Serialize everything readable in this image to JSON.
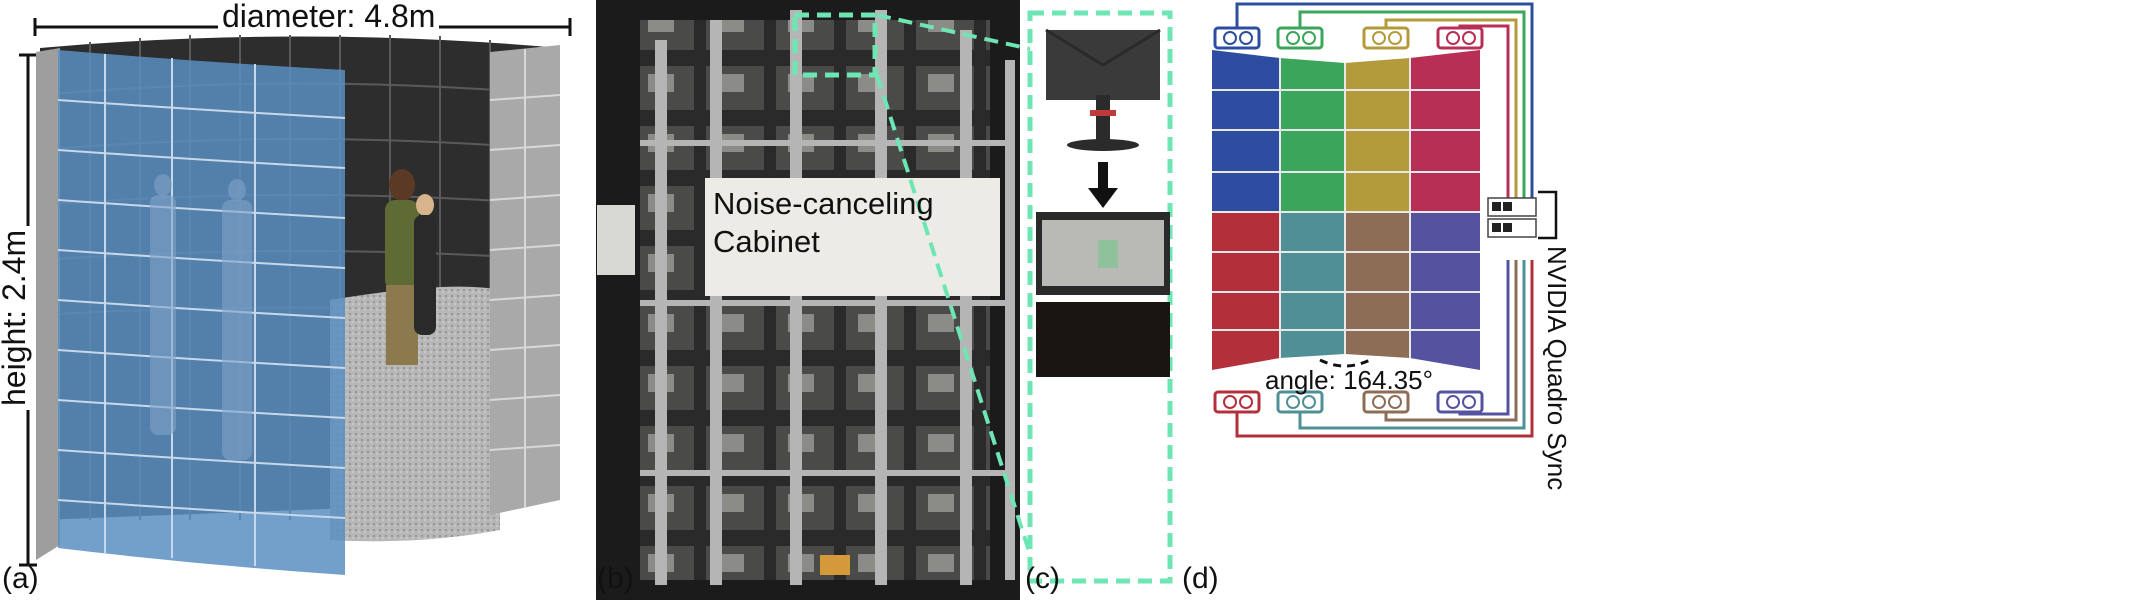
{
  "panel_labels": {
    "a": "(a)",
    "b": "(b)",
    "c": "(c)",
    "d": "(d)"
  },
  "panel_a": {
    "diameter_label": "diameter: 4.8m",
    "height_label": "height: 2.4m"
  },
  "panel_b": {
    "cabinet_label_line1": "Noise-canceling",
    "cabinet_label_line2": "Cabinet"
  },
  "panel_d": {
    "angle_label": "angle: 164.35°",
    "sync_label": "NVIDIA Quadro Sync",
    "colors": {
      "blue": "#2d4ea0",
      "green": "#3aa55b",
      "gold": "#b39b3c",
      "crimson": "#b82f55",
      "red": "#b3303b",
      "teal": "#4f8f96",
      "brown": "#8d6d55",
      "purple": "#5553a0"
    }
  }
}
